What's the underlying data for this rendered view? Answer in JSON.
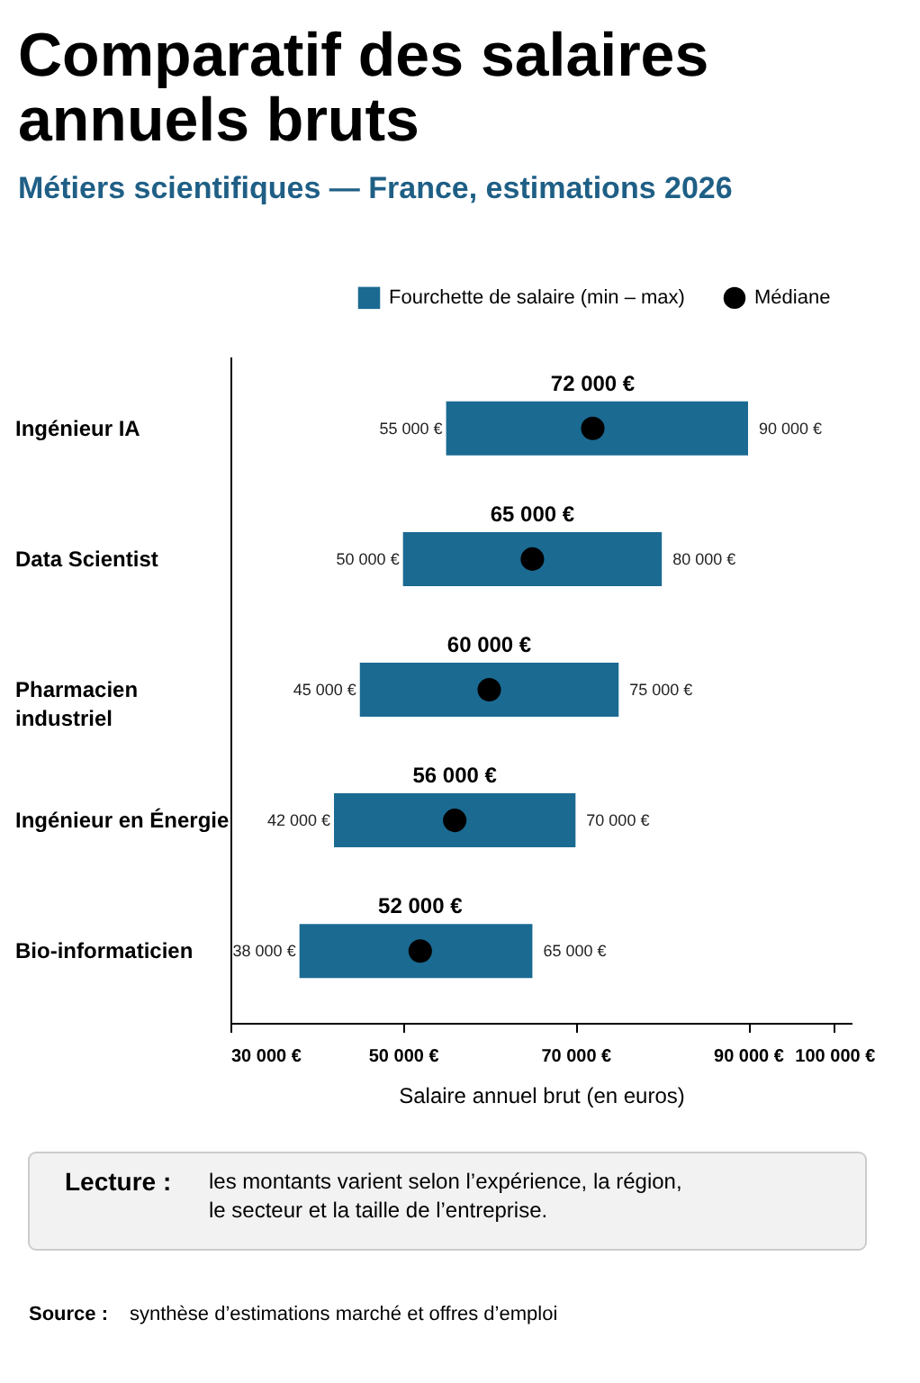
{
  "chart_data": {
    "type": "bar",
    "orientation": "horizontal",
    "title": "Comparatif des salaires annuels bruts",
    "subtitle": "Métiers scientifiques — France, estimations 2026",
    "xlabel": "Salaire annuel brut (en euros)",
    "categories": [
      "Ingénieur IA",
      "Data Scientist",
      "Pharmacien industriel",
      "Ingénieur en Énergie",
      "Bio-informaticien"
    ],
    "series": [
      {
        "name": "Fourchette de salaire (min – max)",
        "color": "#1b6a92",
        "base": [
          55000,
          50000,
          45000,
          42000,
          38000
        ],
        "values": [
          35000,
          30000,
          30000,
          28000,
          27000
        ]
      },
      {
        "name": "Médiane",
        "type": "scatter",
        "color": "#000000",
        "values": [
          72000,
          65000,
          60000,
          56000,
          52000
        ],
        "value_labels": [
          "72 000 €",
          "65 000 €",
          "60 000 €",
          "56 000 €",
          "52 000 €"
        ]
      }
    ],
    "xlim": [
      30000,
      102000
    ],
    "xticks": [
      {
        "value": 30000,
        "label": "30 000 €"
      },
      {
        "value": 50000,
        "label": "50 000 €"
      },
      {
        "value": 70000,
        "label": "70 000 €"
      },
      {
        "value": 90000,
        "label": "90 000 €"
      },
      {
        "value": 100000,
        "label": "100 000 €"
      }
    ],
    "annotations": [
      {
        "text": "55 000 €",
        "x": 55000,
        "y": "Ingénieur IA"
      },
      {
        "text": "90 000 €",
        "x": 90000,
        "y": "Ingénieur IA"
      },
      {
        "text": "50 000 €",
        "x": 50000,
        "y": "Data Scientist"
      },
      {
        "text": "80 000 €",
        "x": 80000,
        "y": "Data Scientist"
      },
      {
        "text": "45 000 €",
        "x": 45000,
        "y": "Pharmacien industriel"
      },
      {
        "text": "75 000 €",
        "x": 75000,
        "y": "Pharmacien industriel"
      },
      {
        "text": "42 000 €",
        "x": 42000,
        "y": "Ingénieur en Énergie"
      },
      {
        "text": "70 000 €",
        "x": 70000,
        "y": "Ingénieur en Énergie"
      },
      {
        "text": "38 000 €",
        "x": 38000,
        "y": "Bio-informaticien"
      },
      {
        "text": "65 000 €",
        "x": 65000,
        "y": "Bio-informaticien"
      },
      "Lecture : les montants varient selon l’expérience, la région, le secteur et la taille de l’entreprise.",
      "Source : synthèse d’estimations marché et offres d’emploi"
    ],
    "legend": "top right",
    "grid": false
  }
}
